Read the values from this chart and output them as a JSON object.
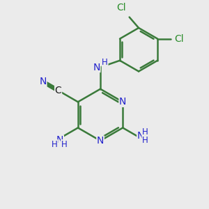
{
  "bg_color": "#ebebeb",
  "bond_color": "#3a7a3a",
  "bond_width": 1.8,
  "atom_colors": {
    "C": "#1a1a1a",
    "N": "#2222cc",
    "Cl": "#2a8c2a",
    "H": "#2222cc"
  },
  "font_size_atom": 10,
  "font_size_small": 8.5,
  "font_size_cl": 10
}
